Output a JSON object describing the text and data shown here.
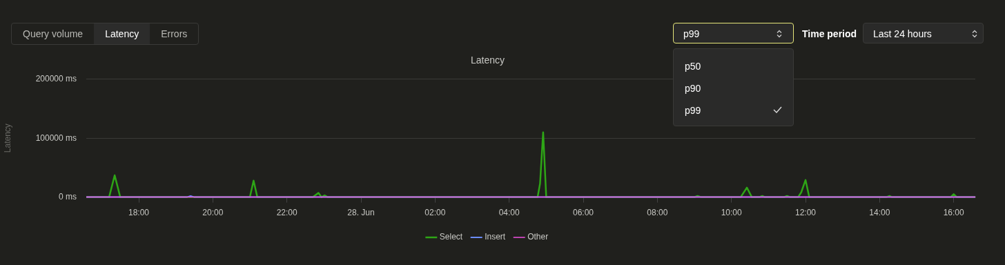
{
  "chart_data": {
    "type": "line",
    "title": "Latency",
    "ylabel": "Latency",
    "annotations": [
      "Query volume",
      "Latency",
      "Errors",
      "p99",
      "Time period",
      "Last 24 hours",
      "p50",
      "p90",
      "p99"
    ],
    "xlim": [
      "--06-27T16:35",
      "--06-28T16:35"
    ],
    "xticks": [
      {
        "value": "--06-27T18:00",
        "label": "18:00"
      },
      {
        "value": "--06-27T20:00",
        "label": "20:00"
      },
      {
        "value": "--06-27T22:00",
        "label": "22:00"
      },
      {
        "value": "--06-28T00:00",
        "label": "28. Jun"
      },
      {
        "value": "--06-28T02:00",
        "label": "02:00"
      },
      {
        "value": "--06-28T04:00",
        "label": "04:00"
      },
      {
        "value": "--06-28T06:00",
        "label": "06:00"
      },
      {
        "value": "--06-28T08:00",
        "label": "08:00"
      },
      {
        "value": "--06-28T10:00",
        "label": "10:00"
      },
      {
        "value": "--06-28T12:00",
        "label": "12:00"
      },
      {
        "value": "--06-28T14:00",
        "label": "14:00"
      },
      {
        "value": "--06-28T16:00",
        "label": "16:00"
      }
    ],
    "ylim": [
      0,
      200000
    ],
    "yticks": [
      {
        "value": 0,
        "label": "0 ms"
      },
      {
        "value": 100000,
        "label": "100000 ms"
      },
      {
        "value": 200000,
        "label": "200000 ms"
      }
    ],
    "grid": "y",
    "legend": "bottom",
    "marker": "none",
    "line_style": "solid",
    "series": [
      {
        "name": "Select",
        "color": "#2ea516",
        "x": [
          "--06-27T16:35",
          "--06-27T17:12",
          "--06-27T17:21",
          "--06-27T17:30",
          "--06-27T21:00",
          "--06-27T21:06",
          "--06-27T21:12",
          "--06-27T22:42",
          "--06-27T22:51",
          "--06-27T22:56",
          "--06-27T23:01",
          "--06-27T23:06",
          "--06-28T04:46",
          "--06-28T04:50",
          "--06-28T04:55",
          "--06-28T05:00",
          "--06-28T09:00",
          "--06-28T09:05",
          "--06-28T09:11",
          "--06-28T10:15",
          "--06-28T10:25",
          "--06-28T10:33",
          "--06-28T10:45",
          "--06-28T10:50",
          "--06-28T10:54",
          "--06-28T11:25",
          "--06-28T11:30",
          "--06-28T11:35",
          "--06-28T11:48",
          "--06-28T11:53",
          "--06-28T12:00",
          "--06-28T12:06",
          "--06-28T14:11",
          "--06-28T14:16",
          "--06-28T14:20",
          "--06-28T15:55",
          "--06-28T16:00",
          "--06-28T16:05",
          "--06-28T16:35"
        ],
        "values": [
          0,
          0,
          37000,
          0,
          0,
          28000,
          0,
          0,
          7000,
          0,
          3000,
          0,
          0,
          23000,
          110000,
          0,
          0,
          2000,
          0,
          0,
          16000,
          0,
          0,
          2000,
          0,
          0,
          2000,
          0,
          0,
          8000,
          29000,
          0,
          0,
          2000,
          0,
          0,
          5000,
          0,
          0
        ]
      },
      {
        "name": "Insert",
        "color": "#6b8cff",
        "x": [
          "--06-27T16:35",
          "--06-27T19:18",
          "--06-27T19:24",
          "--06-27T19:30",
          "--06-28T16:35"
        ],
        "values": [
          0,
          0,
          2000,
          0,
          0
        ]
      },
      {
        "name": "Other",
        "color": "#f04fe0",
        "x": [
          "--06-27T16:35",
          "--06-28T16:35"
        ],
        "values": [
          0,
          0
        ]
      }
    ]
  }
}
